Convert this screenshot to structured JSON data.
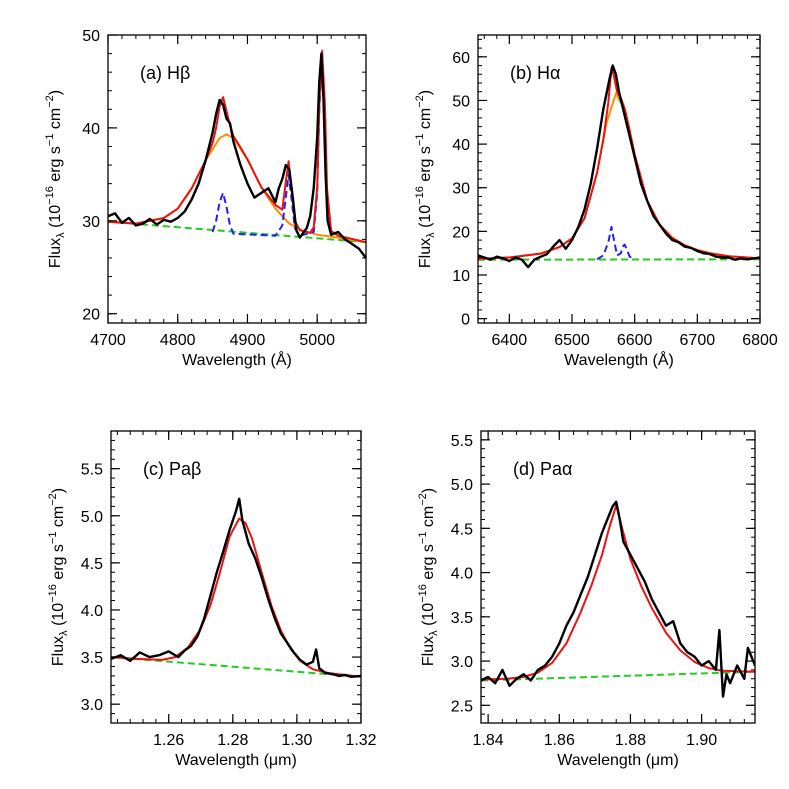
{
  "chart_data": [
    {
      "type": "line",
      "panel_label": "(a) Hβ",
      "xlabel": "Wavelength (Å)",
      "ylabel": "Fluxλ (10⁻¹⁶ erg s⁻¹ cm⁻²)",
      "ylabel_parts": {
        "base": "Flux",
        "sub": "λ",
        "rest": " (10",
        "exp1": "−16",
        "mid": " erg s",
        "exp2": "−1",
        "mid2": " cm",
        "exp3": "−2",
        "end": ")"
      },
      "xlim": [
        4700,
        5070
      ],
      "ylim": [
        19,
        50
      ],
      "xticks": [
        4700,
        4800,
        4900,
        5000
      ],
      "yticks": [
        20,
        30,
        40,
        50
      ],
      "series": [
        {
          "role": "data",
          "color": "#000000",
          "style": "solid",
          "x": [
            4700,
            4710,
            4720,
            4730,
            4740,
            4750,
            4760,
            4770,
            4780,
            4790,
            4800,
            4810,
            4820,
            4830,
            4840,
            4850,
            4855,
            4860,
            4865,
            4870,
            4875,
            4880,
            4890,
            4900,
            4910,
            4920,
            4930,
            4940,
            4945,
            4950,
            4955,
            4960,
            4965,
            4970,
            4975,
            4980,
            4985,
            4990,
            4995,
            5000,
            5003,
            5006,
            5009,
            5012,
            5015,
            5020,
            5030,
            5040,
            5050,
            5060,
            5070
          ],
          "y": [
            30.5,
            30.8,
            29.8,
            30.3,
            29.5,
            29.7,
            30.2,
            29.6,
            30.1,
            29.9,
            30.3,
            31.0,
            32.3,
            34.0,
            36.5,
            39.5,
            41.5,
            43.0,
            42.5,
            41.0,
            40.5,
            38.5,
            36.0,
            34.0,
            32.5,
            33.0,
            33.5,
            32.0,
            33.5,
            34.5,
            36.0,
            35.5,
            32.5,
            29.0,
            28.2,
            28.7,
            29.2,
            30.5,
            33.5,
            39.0,
            45.0,
            48.0,
            43.0,
            35.0,
            30.0,
            28.5,
            28.8,
            28.0,
            27.5,
            27.0,
            26.0
          ]
        },
        {
          "role": "continuum",
          "color": "#22cc22",
          "style": "dashed",
          "x": [
            4700,
            5070
          ],
          "y": [
            29.9,
            27.7
          ]
        },
        {
          "role": "broad-component",
          "color": "#ff8c00",
          "style": "solid",
          "x": [
            4700,
            4740,
            4780,
            4800,
            4820,
            4840,
            4860,
            4870,
            4880,
            4900,
            4920,
            4940,
            4960,
            4980,
            5000,
            5020,
            5070
          ],
          "y": [
            29.9,
            29.7,
            30.3,
            31.3,
            33.5,
            36.5,
            38.9,
            39.3,
            38.9,
            36.6,
            33.6,
            31.3,
            29.7,
            28.9,
            28.5,
            28.3,
            27.7
          ]
        },
        {
          "role": "narrow-components",
          "color": "#2222ee",
          "style": "dashed",
          "x": [
            4850,
            4855,
            4860,
            4865,
            4870,
            4875,
            4880,
            4940,
            4950,
            4955,
            4959,
            4963,
            4968,
            4975,
            4995,
            5000,
            5003,
            5007,
            5011,
            5014,
            5020
          ],
          "y": [
            28.8,
            30.0,
            32.0,
            33.0,
            31.5,
            29.5,
            28.6,
            28.4,
            29.5,
            32.5,
            35.0,
            32.5,
            29.2,
            28.4,
            28.8,
            33.0,
            42.0,
            47.8,
            42.0,
            33.0,
            28.6
          ]
        },
        {
          "role": "total-fit",
          "color": "#ee1111",
          "style": "solid",
          "x": [
            4700,
            4740,
            4780,
            4800,
            4820,
            4840,
            4850,
            4855,
            4860,
            4865,
            4870,
            4875,
            4880,
            4890,
            4900,
            4920,
            4940,
            4950,
            4955,
            4959,
            4963,
            4968,
            4975,
            4990,
            4995,
            5000,
            5003,
            5007,
            5011,
            5014,
            5020,
            5030,
            5070
          ],
          "y": [
            29.9,
            29.7,
            30.3,
            31.3,
            33.5,
            36.5,
            38.4,
            40.0,
            42.3,
            43.3,
            41.8,
            40.3,
            39.1,
            37.9,
            36.6,
            33.6,
            31.7,
            31.2,
            34.2,
            36.4,
            33.6,
            30.0,
            29.0,
            28.7,
            29.3,
            33.6,
            42.6,
            48.3,
            42.5,
            33.5,
            28.9,
            28.4,
            27.7
          ]
        }
      ]
    },
    {
      "type": "line",
      "panel_label": "(b) Hα",
      "xlabel": "Wavelength (Å)",
      "ylabel": "Fluxλ (10⁻¹⁶ erg s⁻¹ cm⁻²)",
      "ylabel_parts": {
        "base": "Flux",
        "sub": "λ",
        "rest": " (10",
        "exp1": "−16",
        "mid": " erg s",
        "exp2": "−1",
        "mid2": " cm",
        "exp3": "−2",
        "end": ")"
      },
      "xlim": [
        6350,
        6800
      ],
      "ylim": [
        -1,
        65
      ],
      "xticks": [
        6400,
        6500,
        6600,
        6700,
        6800
      ],
      "yticks": [
        0,
        10,
        20,
        30,
        40,
        50,
        60
      ],
      "series": [
        {
          "role": "data",
          "color": "#000000",
          "style": "solid",
          "x": [
            6350,
            6360,
            6370,
            6380,
            6390,
            6400,
            6410,
            6420,
            6430,
            6440,
            6450,
            6460,
            6470,
            6480,
            6490,
            6500,
            6510,
            6520,
            6530,
            6540,
            6550,
            6560,
            6565,
            6570,
            6575,
            6580,
            6590,
            6600,
            6610,
            6620,
            6630,
            6640,
            6650,
            6660,
            6670,
            6680,
            6690,
            6700,
            6710,
            6720,
            6730,
            6740,
            6750,
            6760,
            6770,
            6780,
            6790,
            6800
          ],
          "y": [
            14.5,
            14.0,
            13.5,
            14.2,
            13.8,
            13.2,
            14.0,
            13.5,
            11.8,
            13.5,
            14.2,
            14.8,
            16.5,
            18.0,
            16.0,
            18.0,
            21.0,
            25.0,
            31.0,
            39.0,
            48.0,
            55.0,
            58.0,
            56.0,
            52.0,
            49.0,
            43.0,
            37.0,
            31.0,
            27.0,
            23.5,
            21.5,
            19.5,
            18.0,
            17.5,
            16.5,
            16.2,
            15.5,
            15.0,
            14.8,
            14.2,
            14.0,
            14.0,
            13.5,
            13.8,
            13.6,
            13.8,
            14.0
          ]
        },
        {
          "role": "continuum",
          "color": "#22cc22",
          "style": "dashed",
          "x": [
            6350,
            6800
          ],
          "y": [
            13.5,
            13.6
          ]
        },
        {
          "role": "broad-component",
          "color": "#ff8c00",
          "style": "solid",
          "x": [
            6350,
            6400,
            6450,
            6480,
            6500,
            6520,
            6540,
            6555,
            6570,
            6585,
            6600,
            6620,
            6640,
            6660,
            6680,
            6700,
            6720,
            6750,
            6800
          ],
          "y": [
            13.7,
            14.0,
            14.9,
            16.4,
            18.4,
            23.0,
            33.5,
            44.8,
            51.6,
            47.6,
            37.6,
            27.0,
            21.5,
            18.5,
            16.8,
            15.7,
            15.0,
            14.3,
            13.8
          ]
        },
        {
          "role": "narrow-components",
          "color": "#2222ee",
          "style": "dashed",
          "x": [
            6540,
            6550,
            6558,
            6563,
            6567,
            6572,
            6578,
            6581,
            6584,
            6587,
            6592,
            6600
          ],
          "y": [
            13.6,
            14.5,
            17.5,
            21.0,
            18.0,
            14.5,
            15.0,
            16.5,
            17.0,
            16.0,
            14.2,
            13.6
          ]
        },
        {
          "role": "total-fit",
          "color": "#ee1111",
          "style": "solid",
          "x": [
            6350,
            6400,
            6450,
            6480,
            6500,
            6520,
            6540,
            6550,
            6558,
            6563,
            6567,
            6572,
            6578,
            6584,
            6590,
            6600,
            6620,
            6640,
            6660,
            6680,
            6700,
            6720,
            6750,
            6800
          ],
          "y": [
            13.7,
            14.0,
            14.9,
            16.4,
            18.4,
            23.0,
            33.5,
            41.0,
            49.5,
            57.5,
            55.5,
            52.0,
            50.5,
            48.2,
            44.5,
            37.6,
            27.0,
            21.5,
            18.5,
            16.8,
            15.7,
            15.0,
            14.3,
            13.8
          ]
        }
      ]
    },
    {
      "type": "line",
      "panel_label": "(c) Paβ",
      "xlabel": "Wavelength (μm)",
      "ylabel": "Fluxλ (10⁻¹⁶ erg s⁻¹ cm⁻²)",
      "ylabel_parts": {
        "base": "Flux",
        "sub": "λ",
        "rest": " (10",
        "exp1": "−16",
        "mid": " erg s",
        "exp2": "−1",
        "mid2": " cm",
        "exp3": "−2",
        "end": ")"
      },
      "xlim": [
        1.242,
        1.32
      ],
      "ylim": [
        2.8,
        5.9
      ],
      "xticks": [
        1.26,
        1.28,
        1.3,
        1.32
      ],
      "xtick_labels": [
        "1.26",
        "1.28",
        "1.30",
        "1.32"
      ],
      "yticks": [
        3.0,
        3.5,
        4.0,
        4.5,
        5.0,
        5.5
      ],
      "ytick_labels": [
        "3.0",
        "3.5",
        "4.0",
        "4.5",
        "5.0",
        "5.5"
      ],
      "series": [
        {
          "role": "data",
          "color": "#000000",
          "style": "solid",
          "x": [
            1.242,
            1.245,
            1.248,
            1.251,
            1.254,
            1.257,
            1.26,
            1.263,
            1.265,
            1.267,
            1.269,
            1.271,
            1.273,
            1.275,
            1.277,
            1.279,
            1.281,
            1.282,
            1.283,
            1.285,
            1.287,
            1.289,
            1.291,
            1.293,
            1.295,
            1.297,
            1.299,
            1.301,
            1.303,
            1.305,
            1.306,
            1.307,
            1.309,
            1.311,
            1.313,
            1.315,
            1.317,
            1.32
          ],
          "y": [
            3.48,
            3.52,
            3.46,
            3.55,
            3.5,
            3.52,
            3.56,
            3.5,
            3.57,
            3.62,
            3.72,
            3.9,
            4.15,
            4.4,
            4.62,
            4.85,
            5.05,
            5.18,
            4.95,
            4.7,
            4.55,
            4.35,
            4.12,
            3.92,
            3.75,
            3.65,
            3.55,
            3.47,
            3.42,
            3.45,
            3.58,
            3.38,
            3.33,
            3.32,
            3.3,
            3.31,
            3.29,
            3.3
          ]
        },
        {
          "role": "continuum",
          "color": "#22cc22",
          "style": "dashed",
          "x": [
            1.242,
            1.32
          ],
          "y": [
            3.5,
            3.29
          ]
        },
        {
          "role": "total-fit",
          "color": "#ee1111",
          "style": "solid",
          "x": [
            1.242,
            1.25,
            1.258,
            1.262,
            1.266,
            1.27,
            1.273,
            1.276,
            1.279,
            1.282,
            1.284,
            1.286,
            1.289,
            1.292,
            1.295,
            1.298,
            1.301,
            1.305,
            1.31,
            1.32
          ],
          "y": [
            3.5,
            3.48,
            3.47,
            3.5,
            3.6,
            3.8,
            4.05,
            4.4,
            4.78,
            4.97,
            4.92,
            4.76,
            4.4,
            4.05,
            3.78,
            3.59,
            3.46,
            3.37,
            3.33,
            3.29
          ]
        }
      ]
    },
    {
      "type": "line",
      "panel_label": "(d) Paα",
      "xlabel": "Wavelength (μm)",
      "ylabel": "Fluxλ (10⁻¹⁶ erg s⁻¹ cm⁻²)",
      "ylabel_parts": {
        "base": "Flux",
        "sub": "λ",
        "rest": " (10",
        "exp1": "−16",
        "mid": " erg s",
        "exp2": "−1",
        "mid2": " cm",
        "exp3": "−2",
        "end": ")"
      },
      "xlim": [
        1.838,
        1.915
      ],
      "ylim": [
        2.3,
        5.6
      ],
      "xticks": [
        1.84,
        1.86,
        1.88,
        1.9
      ],
      "xtick_labels": [
        "1.84",
        "1.86",
        "1.88",
        "1.90"
      ],
      "yticks": [
        2.5,
        3.0,
        3.5,
        4.0,
        4.5,
        5.0,
        5.5
      ],
      "ytick_labels": [
        "2.5",
        "3.0",
        "3.5",
        "4.0",
        "4.5",
        "5.0",
        "5.5"
      ],
      "series": [
        {
          "role": "data",
          "color": "#000000",
          "style": "solid",
          "x": [
            1.838,
            1.84,
            1.842,
            1.844,
            1.846,
            1.848,
            1.85,
            1.852,
            1.854,
            1.856,
            1.858,
            1.86,
            1.862,
            1.864,
            1.866,
            1.868,
            1.87,
            1.872,
            1.874,
            1.875,
            1.876,
            1.877,
            1.878,
            1.88,
            1.882,
            1.884,
            1.886,
            1.888,
            1.89,
            1.892,
            1.894,
            1.896,
            1.898,
            1.9,
            1.902,
            1.904,
            1.905,
            1.906,
            1.907,
            1.908,
            1.91,
            1.912,
            1.913,
            1.915
          ],
          "y": [
            2.78,
            2.82,
            2.75,
            2.9,
            2.72,
            2.8,
            2.85,
            2.78,
            2.9,
            2.95,
            3.05,
            3.2,
            3.4,
            3.55,
            3.75,
            3.95,
            4.2,
            4.45,
            4.65,
            4.75,
            4.8,
            4.6,
            4.35,
            4.2,
            4.05,
            3.9,
            3.7,
            3.55,
            3.4,
            3.45,
            3.2,
            3.1,
            3.05,
            2.95,
            3.0,
            2.9,
            3.35,
            2.6,
            2.85,
            2.75,
            2.95,
            2.8,
            3.15,
            2.95
          ]
        },
        {
          "role": "continuum",
          "color": "#22cc22",
          "style": "dashed",
          "x": [
            1.838,
            1.915
          ],
          "y": [
            2.78,
            2.88
          ]
        },
        {
          "role": "total-fit",
          "color": "#ee1111",
          "style": "solid",
          "x": [
            1.838,
            1.845,
            1.85,
            1.854,
            1.858,
            1.862,
            1.866,
            1.869,
            1.872,
            1.874,
            1.876,
            1.878,
            1.88,
            1.883,
            1.886,
            1.89,
            1.894,
            1.898,
            1.902,
            1.906,
            1.915
          ],
          "y": [
            2.79,
            2.8,
            2.82,
            2.87,
            2.98,
            3.2,
            3.55,
            3.85,
            4.2,
            4.5,
            4.76,
            4.45,
            4.15,
            3.85,
            3.6,
            3.32,
            3.12,
            2.99,
            2.92,
            2.89,
            2.88
          ]
        }
      ]
    }
  ]
}
